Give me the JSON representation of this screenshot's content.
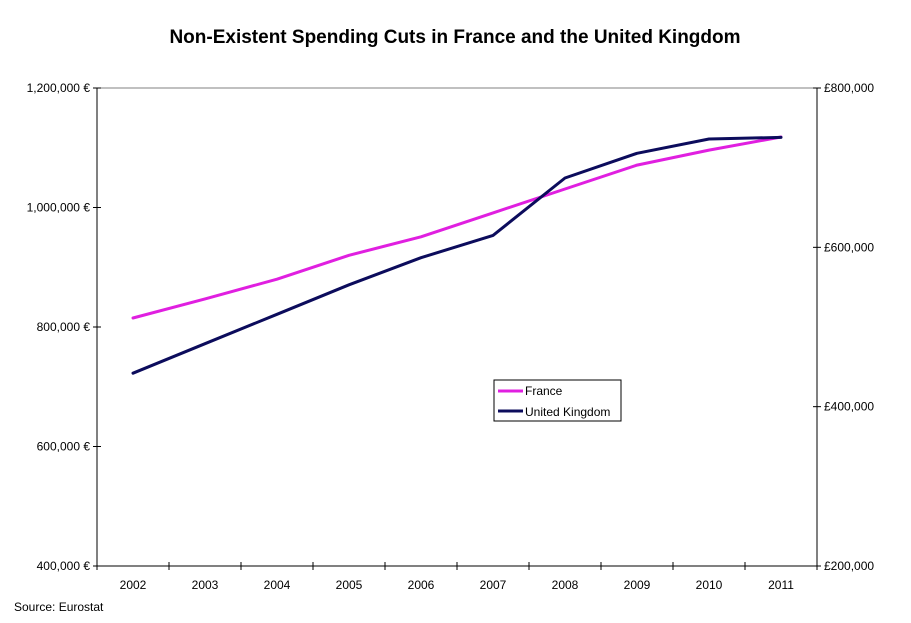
{
  "chart_data": {
    "type": "line",
    "title": "Non-Existent Spending Cuts in France and the United Kingdom",
    "source": "Source: Eurostat",
    "xlabel": "",
    "categories": [
      "2002",
      "2003",
      "2004",
      "2005",
      "2006",
      "2007",
      "2008",
      "2009",
      "2010",
      "2011"
    ],
    "series": [
      {
        "name": "France",
        "axis": "left",
        "color": "#e01fe0",
        "values": [
          815000,
          847000,
          880000,
          920000,
          951000,
          991000,
          1031000,
          1071000,
          1096000,
          1118000
        ]
      },
      {
        "name": "United Kingdom",
        "axis": "right",
        "color": "#0c0c5c",
        "values": [
          442000,
          479000,
          516000,
          553000,
          587000,
          615000,
          687000,
          718000,
          736000,
          738000
        ]
      }
    ],
    "y_left": {
      "ylim": [
        400000,
        1200000
      ],
      "ticks": [
        400000,
        600000,
        800000,
        1000000,
        1200000
      ],
      "tick_labels": [
        "400,000 €",
        "600,000 €",
        "800,000 €",
        "1,000,000 €",
        "1,200,000 €"
      ]
    },
    "y_right": {
      "ylim": [
        200000,
        800000
      ],
      "ticks": [
        200000,
        400000,
        600000,
        800000
      ],
      "tick_labels": [
        "£200,000",
        "£400,000",
        "£600,000",
        "£800,000"
      ]
    },
    "grid": false,
    "legend": {
      "placement": "center",
      "entries": [
        "France",
        "United Kingdom"
      ]
    }
  }
}
